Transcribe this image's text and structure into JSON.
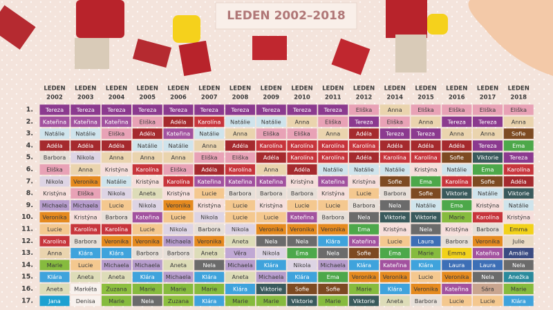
{
  "header": {
    "title": "LEDEN 2002–2018"
  },
  "name_colors": {
    "Tereza": "#8b3a8f",
    "Kateřina": "#a2529f",
    "Eliška": "#e8a2b6",
    "Natálie": "#cfe4ec",
    "Adéla": "#a52a2e",
    "Barbora": "#e6dfd8",
    "Anna": "#ead4ae",
    "Karolína": "#c7353c",
    "Nikola": "#ddd4e4",
    "Kristýna": "#f6dedb",
    "Veronika": "#e58a1f",
    "Michaela": "#b69ccc",
    "Lucie": "#f4c88f",
    "Marie": "#86bb3e",
    "Klára": "#3fa3dc",
    "Aneta": "#dddcb8",
    "Jana": "#1da1d1",
    "Denisa": "#f8f2ee",
    "Markéta": "#f8f2ee",
    "Zuzana": "#8dbf3f",
    "Nela": "#6b6b6b",
    "Ema": "#4da84a",
    "Věra": "#c0a8d4",
    "Sofie": "#7d4a22",
    "Viktorie": "#3a5a5c",
    "Laura": "#3d6fb6",
    "Emma": "#f2d21a",
    "Julie": "#eadbc4",
    "Amálie": "#3b4b82",
    "Anežka": "#2a8a9c",
    "Sára": "#c9a58f"
  },
  "table": {
    "columns": [
      {
        "label": "LEDEN",
        "year": "2002"
      },
      {
        "label": "LEDEN",
        "year": "2003"
      },
      {
        "label": "LEDEN",
        "year": "2004"
      },
      {
        "label": "LEDEN",
        "year": "2005"
      },
      {
        "label": "LEDEN",
        "year": "2006"
      },
      {
        "label": "LEDEN",
        "year": "2007"
      },
      {
        "label": "LEDEN",
        "year": "2008"
      },
      {
        "label": "LEDEN",
        "year": "2009"
      },
      {
        "label": "LEDEN",
        "year": "2010"
      },
      {
        "label": "LEDEN",
        "year": "2011"
      },
      {
        "label": "LEDEN",
        "year": "2012"
      },
      {
        "label": "LEDEN",
        "year": "2014"
      },
      {
        "label": "LEDEN",
        "year": "2015"
      },
      {
        "label": "LEDEN",
        "year": "2016"
      },
      {
        "label": "LEDEN",
        "year": "2017"
      },
      {
        "label": "LEDEN",
        "year": "2018"
      }
    ],
    "rows": [
      {
        "rank": "1.",
        "cells": [
          "Tereza",
          "Tereza",
          "Tereza",
          "Tereza",
          "Tereza",
          "Tereza",
          "Tereza",
          "Tereza",
          "Tereza",
          "Tereza",
          "Eliška",
          "Anna",
          "Eliška",
          "Eliška",
          "Eliška",
          "Eliška"
        ]
      },
      {
        "rank": "2.",
        "cells": [
          "Kateřina",
          "Kateřina",
          "Kateřina",
          "Eliška",
          "Adéla",
          "Karolína",
          "Natálie",
          "Natálie",
          "Anna",
          "Eliška",
          "Tereza",
          "Eliška",
          "Anna",
          "Tereza",
          "Tereza",
          "Anna"
        ]
      },
      {
        "rank": "3.",
        "cells": [
          "Natálie",
          "Natálie",
          "Eliška",
          "Adéla",
          "Kateřina",
          "Natálie",
          "Anna",
          "Eliška",
          "Eliška",
          "Anna",
          "Adéla",
          "Tereza",
          "Tereza",
          "Anna",
          "Anna",
          "Sofie"
        ]
      },
      {
        "rank": "4.",
        "cells": [
          "Adéla",
          "Adéla",
          "Adéla",
          "Natálie",
          "Natálie",
          "Anna",
          "Adéla",
          "Karolína",
          "Karolína",
          "Karolína",
          "Karolína",
          "Adéla",
          "Adéla",
          "Adéla",
          "Tereza",
          "Ema"
        ]
      },
      {
        "rank": "5.",
        "cells": [
          "Barbora",
          "Nikola",
          "Anna",
          "Anna",
          "Anna",
          "Eliška",
          "Eliška",
          "Adéla",
          "Karolína",
          "Karolína",
          "Adéla",
          "Karolína",
          "Karolína",
          "Sofie",
          "Viktorie",
          "Tereza"
        ]
      },
      {
        "rank": "6.",
        "cells": [
          "Eliška",
          "Anna",
          "Kristýna",
          "Karolína",
          "Eliška",
          "Adéla",
          "Karolína",
          "Anna",
          "Adéla",
          "Natálie",
          "Natálie",
          "Natálie",
          "Kristýna",
          "Natálie",
          "Ema",
          "Karolína"
        ]
      },
      {
        "rank": "7.",
        "cells": [
          "Nikola",
          "Veronika",
          "Natálie",
          "Kristýna",
          "Karolína",
          "Kateřina",
          "Kateřina",
          "Kateřina",
          "Kristýna",
          "Kateřina",
          "Kristýna",
          "Sofie",
          "Ema",
          "Karolína",
          "Sofie",
          "Adéla"
        ]
      },
      {
        "rank": "8.",
        "cells": [
          "Kristýna",
          "Eliška",
          "Nikola",
          "Aneta",
          "Kristýna",
          "Lucie",
          "Barbora",
          "Barbora",
          "Barbora",
          "Kristýna",
          "Lucie",
          "Barbora",
          "Sofie",
          "Viktorie",
          "Natálie",
          "Viktorie"
        ]
      },
      {
        "rank": "9.",
        "cells": [
          "Michaela",
          "Michaela",
          "Lucie",
          "Nikola",
          "Veronika",
          "Kristýna",
          "Lucie",
          "Kristýna",
          "Lucie",
          "Lucie",
          "Barbora",
          "Nela",
          "Natálie",
          "Ema",
          "Kristýna",
          "Natálie"
        ]
      },
      {
        "rank": "10.",
        "cells": [
          "Veronika",
          "Kristýna",
          "Barbora",
          "Kateřina",
          "Lucie",
          "Nikola",
          "Lucie",
          "Lucie",
          "Kateřina",
          "Barbora",
          "Nela",
          "Viktorie",
          "Viktorie",
          "Marie",
          "Karolína",
          "Kristýna"
        ]
      },
      {
        "rank": "11.",
        "cells": [
          "Lucie",
          "Karolína",
          "Karolína",
          "Lucie",
          "Nikola",
          "Barbora",
          "Nikola",
          "Veronika",
          "Veronika",
          "Veronika",
          "Ema",
          "Kristýna",
          "Nela",
          "Kristýna",
          "Barbora",
          "Emma"
        ]
      },
      {
        "rank": "12.",
        "cells": [
          "Karolína",
          "Barbora",
          "Veronika",
          "Veronika",
          "Michaela",
          "Veronika",
          "Aneta",
          "Nela",
          "Nela",
          "Klára",
          "Kateřina",
          "Lucie",
          "Laura",
          "Barbora",
          "Veronika",
          "Julie"
        ]
      },
      {
        "rank": "13.",
        "cells": [
          "Anna",
          "Klára",
          "Klára",
          "Barbora",
          "Barbora",
          "Aneta",
          "Věra",
          "Nikola",
          "Ema",
          "Nela",
          "Sofie",
          "Ema",
          "Marie",
          "Emma",
          "Kateřina",
          "Amálie"
        ]
      },
      {
        "rank": "14.",
        "cells": [
          "Marie",
          "Lucie",
          "Michaela",
          "Michaela",
          "Aneta",
          "Nela",
          "Michaela",
          "Klára",
          "Nikola",
          "Michaela",
          "Klára",
          "Kateřina",
          "Klára",
          "Laura",
          "Laura",
          "Nela"
        ]
      },
      {
        "rank": "15.",
        "cells": [
          "Klára",
          "Aneta",
          "Aneta",
          "Klára",
          "Michaela",
          "Klára",
          "Aneta",
          "Michaela",
          "Klára",
          "Ema",
          "Veronika",
          "Veronika",
          "Lucie",
          "Veronika",
          "Nela",
          "Anežka"
        ]
      },
      {
        "rank": "16.",
        "cells": [
          "Aneta",
          "Markéta",
          "Zuzana",
          "Marie",
          "Marie",
          "Marie",
          "Klára",
          "Viktorie",
          "Sofie",
          "Sofie",
          "Marie",
          "Klára",
          "Veronika",
          "Kateřina",
          "Sára",
          "Marie"
        ]
      },
      {
        "rank": "17.",
        "cells": [
          "Jana",
          "Denisa",
          "Marie",
          "Nela",
          "Zuzana",
          "Klára",
          "Marie",
          "Marie",
          "Viktorie",
          "Marie",
          "Viktorie",
          "Aneta",
          "Barbora",
          "Lucie",
          "Lucie",
          "Klára"
        ]
      }
    ]
  }
}
